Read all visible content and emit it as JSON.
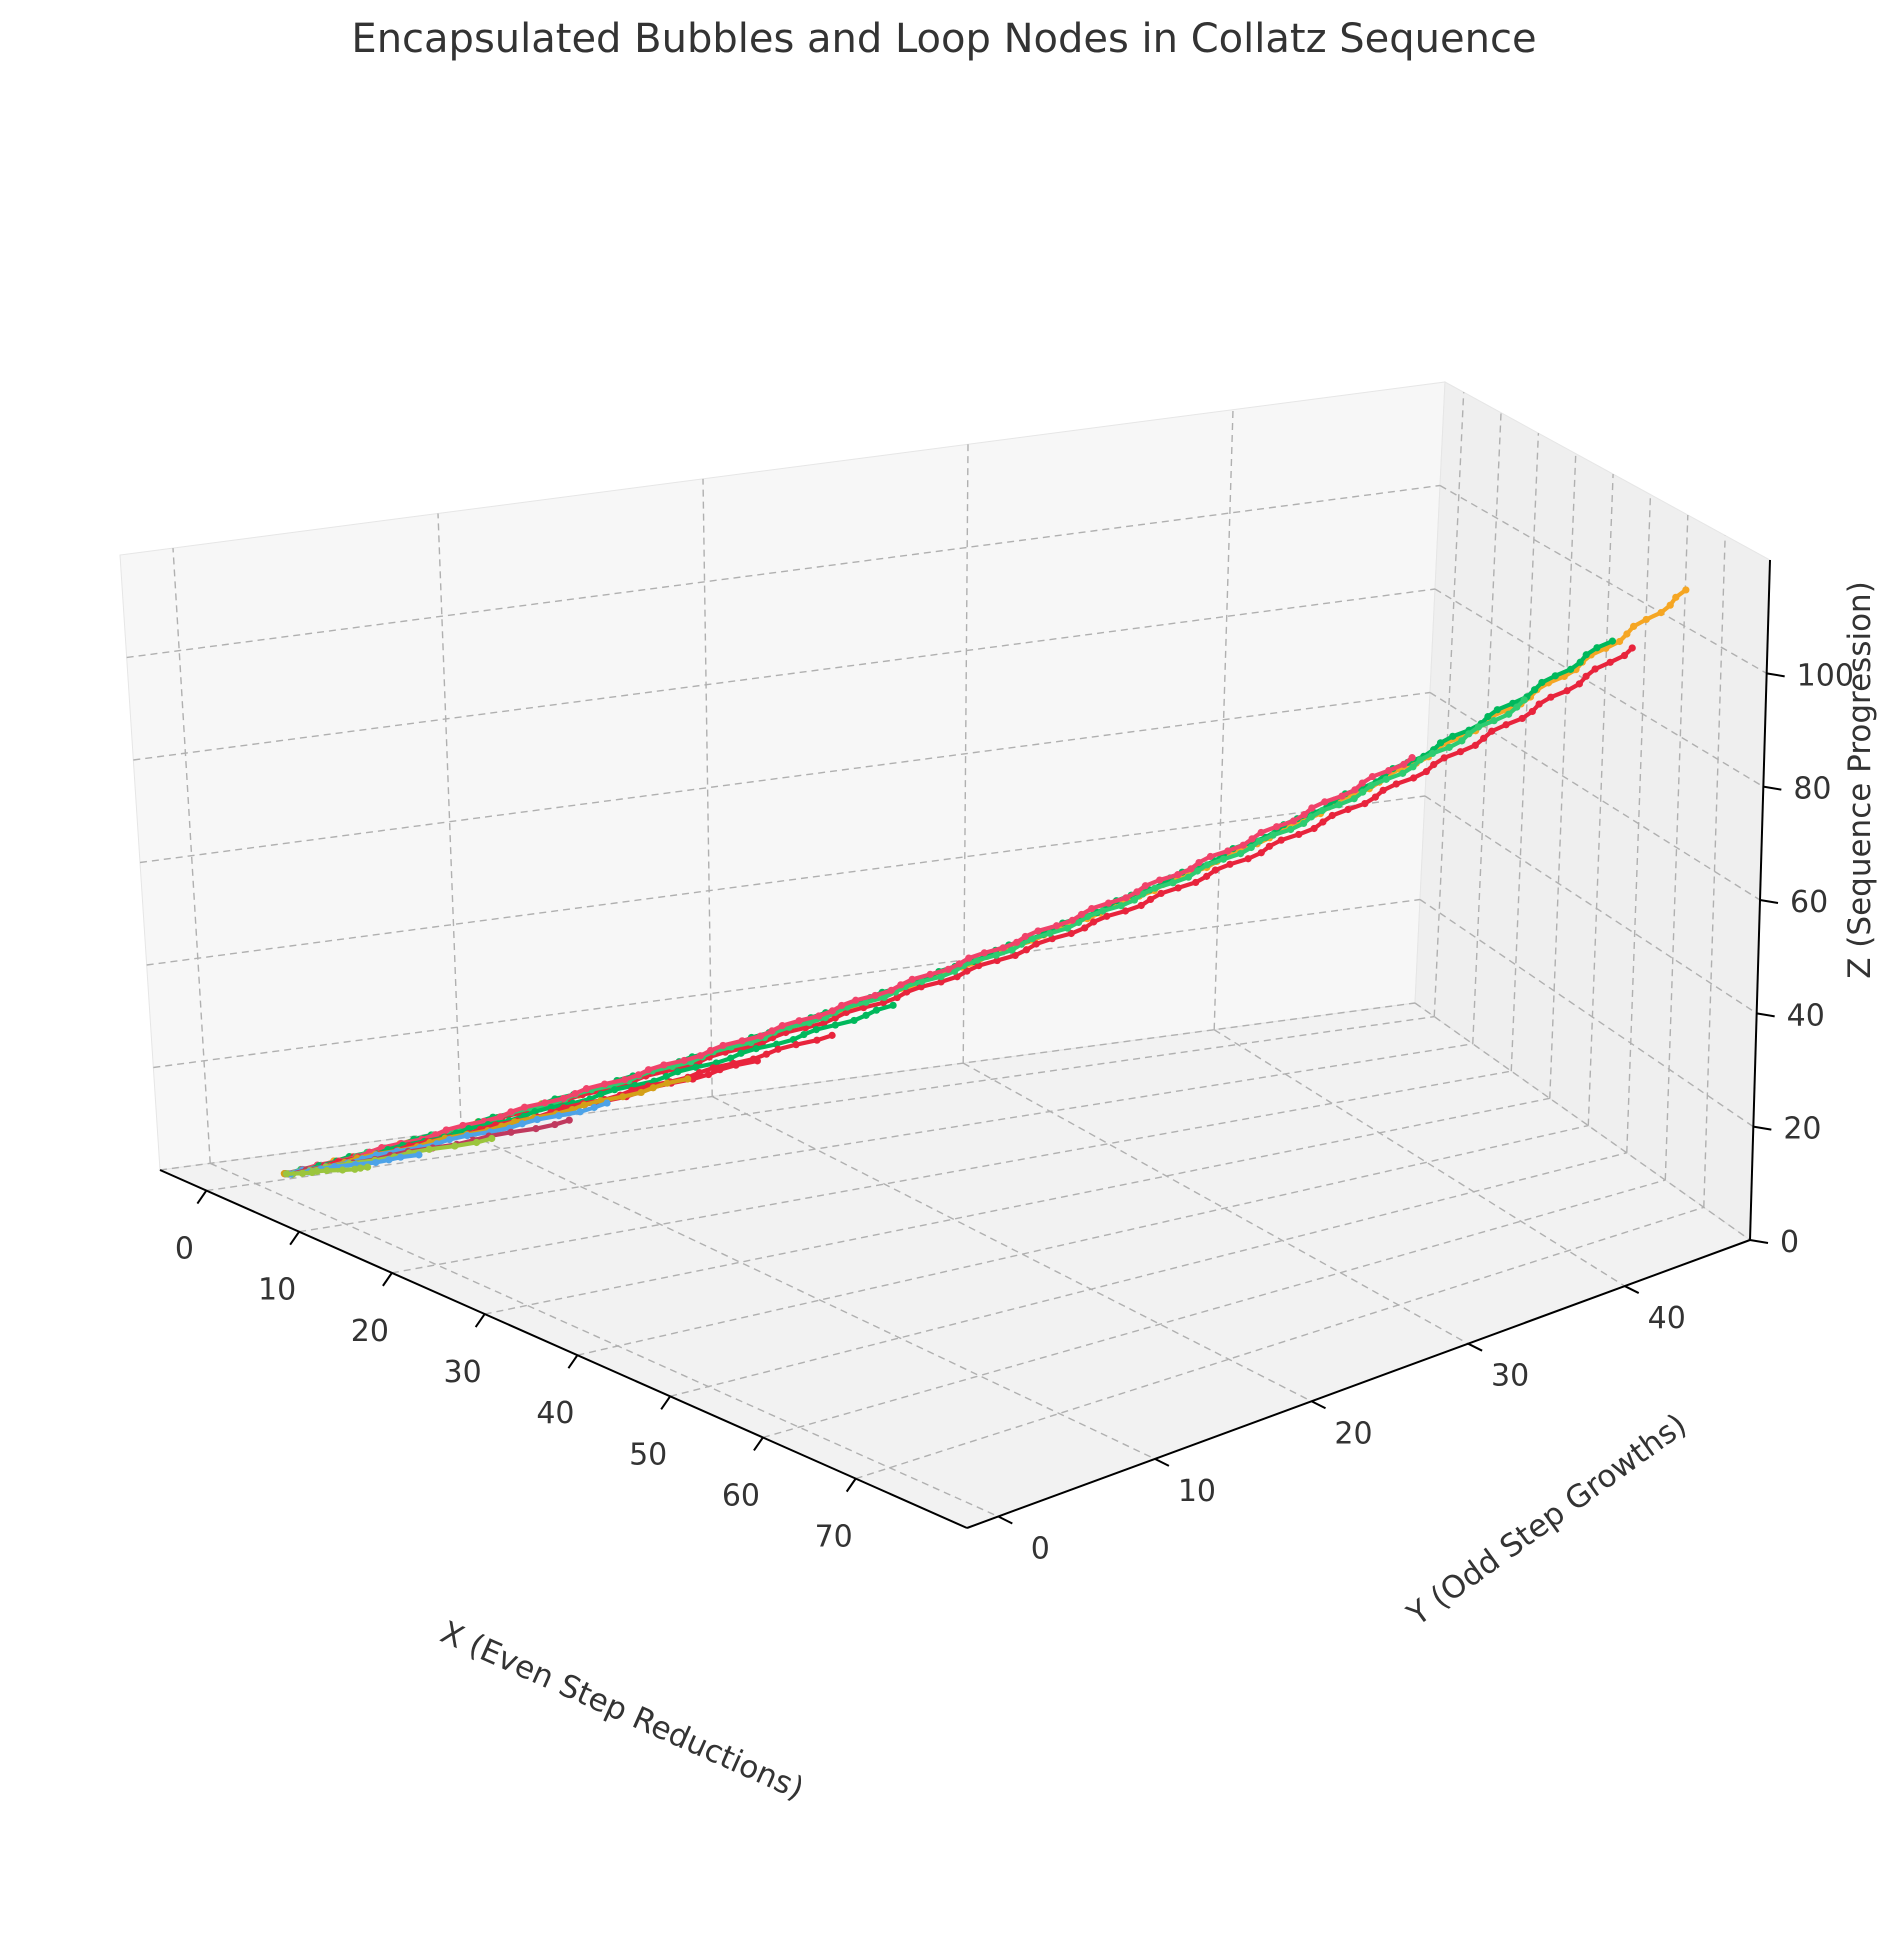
{
  "chart_data": {
    "type": "line",
    "projection": "3d",
    "title": "Encapsulated Bubbles and Loop Nodes in Collatz Sequence",
    "xlabel": "X (Even Step Reductions)",
    "ylabel": "Y (Odd Step Growths)",
    "zlabel": "Z (Sequence Progression)",
    "xticks": [
      "0",
      "10",
      "20",
      "30",
      "40",
      "50",
      "60",
      "70"
    ],
    "yticks": [
      "0",
      "10",
      "20",
      "30",
      "40"
    ],
    "zticks": [
      "0",
      "20",
      "40",
      "60",
      "80",
      "100"
    ],
    "xlim": [
      -5,
      82
    ],
    "ylim": [
      -2,
      48
    ],
    "zlim": [
      0,
      120
    ],
    "grid": true,
    "legend": "none",
    "markers": "dots on every point",
    "series": [
      {
        "color": "#f5a623",
        "points": [
          [
            1,
            1,
            2
          ],
          [
            78,
            44,
            118
          ]
        ]
      },
      {
        "color": "#00b85c",
        "points": [
          [
            1,
            1,
            2
          ],
          [
            72,
            41,
            110
          ]
        ]
      },
      {
        "color": "#e8243c",
        "points": [
          [
            1,
            1,
            2
          ],
          [
            73,
            42,
            108
          ]
        ]
      },
      {
        "color": "#2ecc71",
        "points": [
          [
            1,
            1,
            2
          ],
          [
            66,
            38,
            100
          ]
        ]
      },
      {
        "color": "#f0436a",
        "points": [
          [
            1,
            1,
            2
          ],
          [
            58,
            34,
            90
          ]
        ]
      },
      {
        "color": "#00b85c",
        "points": [
          [
            1,
            1,
            2
          ],
          [
            31,
            17,
            44
          ]
        ]
      },
      {
        "color": "#e8243c",
        "points": [
          [
            1,
            1,
            2
          ],
          [
            28,
            15,
            38
          ]
        ]
      },
      {
        "color": "#e8243c",
        "points": [
          [
            1,
            1,
            2
          ],
          [
            24,
            13,
            32
          ]
        ]
      },
      {
        "color": "#d4a017",
        "points": [
          [
            1,
            1,
            2
          ],
          [
            21,
            11,
            28
          ]
        ]
      },
      {
        "color": "#4da3e8",
        "points": [
          [
            1,
            1,
            2
          ],
          [
            17,
            9,
            22
          ]
        ]
      },
      {
        "color": "#c0395e",
        "points": [
          [
            1,
            1,
            2
          ],
          [
            15,
            8,
            18
          ]
        ]
      },
      {
        "color": "#9bc53d",
        "points": [
          [
            1,
            1,
            2
          ],
          [
            11,
            6,
            13
          ]
        ]
      },
      {
        "color": "#4da3e8",
        "points": [
          [
            1,
            1,
            2
          ],
          [
            8,
            4,
            9
          ]
        ]
      },
      {
        "color": "#9bc53d",
        "points": [
          [
            1,
            1,
            2
          ],
          [
            5,
            3,
            5
          ]
        ]
      }
    ]
  }
}
